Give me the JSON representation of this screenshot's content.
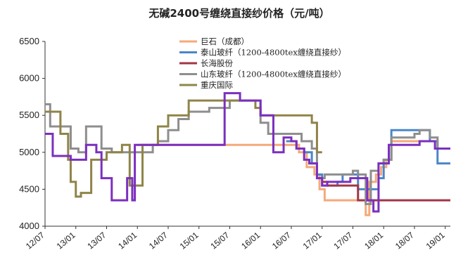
{
  "chart_data": {
    "type": "line",
    "title": "无碱2400号缠绕直接纱价格（元/吨）",
    "xlabel": "",
    "ylabel": "",
    "ylim": [
      4000,
      6500
    ],
    "yticks": [
      4000,
      4500,
      5000,
      5500,
      6000,
      6500
    ],
    "xlim": [
      0,
      79
    ],
    "xticks": [
      {
        "label": "12/07",
        "x": 0
      },
      {
        "label": "13/01",
        "x": 6
      },
      {
        "label": "13/07",
        "x": 12
      },
      {
        "label": "14/01",
        "x": 18
      },
      {
        "label": "14/07",
        "x": 24
      },
      {
        "label": "15/01",
        "x": 30
      },
      {
        "label": "15/07",
        "x": 36
      },
      {
        "label": "16/01",
        "x": 42
      },
      {
        "label": "16/07",
        "x": 48
      },
      {
        "label": "17/01",
        "x": 54
      },
      {
        "label": "17/07",
        "x": 60
      },
      {
        "label": "18/01",
        "x": 66
      },
      {
        "label": "18/07",
        "x": 72
      },
      {
        "label": "19/01",
        "x": 78
      }
    ],
    "legend_position": "top-center",
    "series": [
      {
        "name": "巨石（成都）",
        "color": "#F5A97A",
        "step": true,
        "points": [
          [
            18,
            5100
          ],
          [
            48,
            5100
          ],
          [
            49.5,
            5000
          ],
          [
            51,
            4800
          ],
          [
            52.5,
            4700
          ],
          [
            53.5,
            4500
          ],
          [
            54.5,
            4350
          ],
          [
            62.5,
            4150
          ],
          [
            63.2,
            4600
          ],
          [
            64.5,
            4700
          ],
          [
            65.5,
            4800
          ],
          [
            66.5,
            4900
          ],
          [
            67.5,
            5150
          ],
          [
            74,
            5150
          ],
          [
            76,
            5050
          ],
          [
            79,
            5050
          ]
        ]
      },
      {
        "name": "泰山玻纤（1200-4800tex缠绕直接纱）",
        "color": "#4A86C8",
        "step": true,
        "points": [
          [
            47,
            5150
          ],
          [
            49,
            5050
          ],
          [
            50.5,
            5000
          ],
          [
            52,
            4850
          ],
          [
            53,
            4700
          ],
          [
            54,
            4550
          ],
          [
            57,
            4600
          ],
          [
            58,
            4700
          ],
          [
            61,
            4500
          ],
          [
            65,
            4650
          ],
          [
            66,
            4900
          ],
          [
            67.5,
            5300
          ],
          [
            73,
            5300
          ],
          [
            75,
            5150
          ],
          [
            76.5,
            4850
          ],
          [
            79,
            4850
          ]
        ]
      },
      {
        "name": "长海股份",
        "color": "#A23545",
        "step": true,
        "points": [
          [
            54,
            4600
          ],
          [
            55,
            4550
          ],
          [
            60,
            4550
          ],
          [
            61,
            4350
          ],
          [
            79,
            4350
          ]
        ]
      },
      {
        "name": "山东玻纤（1200-4800tex缠绕直接纱）",
        "color": "#8E8E8E",
        "step": true,
        "points": [
          [
            0,
            5650
          ],
          [
            1,
            5350
          ],
          [
            5,
            5050
          ],
          [
            6.5,
            5000
          ],
          [
            8,
            5350
          ],
          [
            11,
            5050
          ],
          [
            13,
            5000
          ],
          [
            21,
            5100
          ],
          [
            22,
            5150
          ],
          [
            24,
            5300
          ],
          [
            26,
            5450
          ],
          [
            28,
            5550
          ],
          [
            32,
            5600
          ],
          [
            36,
            5700
          ],
          [
            40,
            5700
          ],
          [
            42,
            5400
          ],
          [
            43.5,
            5250
          ],
          [
            47,
            5250
          ],
          [
            50,
            5150
          ],
          [
            52,
            5050
          ],
          [
            53,
            4650
          ],
          [
            54.5,
            4700
          ],
          [
            59,
            4700
          ],
          [
            60,
            4750
          ],
          [
            61,
            4700
          ],
          [
            62.5,
            4300
          ],
          [
            63.5,
            4750
          ],
          [
            65,
            4850
          ],
          [
            66,
            4900
          ],
          [
            67.5,
            5200
          ],
          [
            72,
            5250
          ],
          [
            73,
            5300
          ],
          [
            75,
            5200
          ],
          [
            76.5,
            5050
          ],
          [
            79,
            5050
          ]
        ]
      },
      {
        "name": "重庆国际",
        "color": "#8F8448",
        "step": true,
        "points": [
          [
            0,
            5550
          ],
          [
            3,
            5250
          ],
          [
            4.5,
            4900
          ],
          [
            5,
            4600
          ],
          [
            6,
            4400
          ],
          [
            7,
            4450
          ],
          [
            9,
            4900
          ],
          [
            11,
            4900
          ],
          [
            12,
            5000
          ],
          [
            15,
            5100
          ],
          [
            16.5,
            4550
          ],
          [
            19,
            5100
          ],
          [
            22,
            5350
          ],
          [
            24,
            5500
          ],
          [
            28,
            5700
          ],
          [
            33,
            5700
          ],
          [
            36,
            5700
          ],
          [
            40,
            5700
          ],
          [
            41,
            5600
          ],
          [
            42,
            5500
          ],
          [
            44,
            5500
          ],
          [
            52,
            5400
          ],
          [
            53,
            5000
          ],
          [
            54,
            5000
          ]
        ]
      },
      {
        "name": "",
        "color": "#7B2FBE",
        "step": true,
        "points": [
          [
            0,
            5250
          ],
          [
            1.5,
            4950
          ],
          [
            5,
            4900
          ],
          [
            8,
            5100
          ],
          [
            10,
            5000
          ],
          [
            11,
            4650
          ],
          [
            13,
            4350
          ],
          [
            16,
            4650
          ],
          [
            17,
            4350
          ],
          [
            17.5,
            5100
          ],
          [
            20,
            5100
          ],
          [
            23,
            5100
          ],
          [
            35,
            5800
          ],
          [
            38,
            5700
          ],
          [
            41,
            5700
          ],
          [
            42,
            5500
          ],
          [
            44.5,
            5000
          ],
          [
            46.5,
            5200
          ],
          [
            48,
            5150
          ],
          [
            49,
            5050
          ],
          [
            50.5,
            4900
          ],
          [
            51.5,
            4850
          ],
          [
            52.5,
            4850
          ],
          [
            53,
            4650
          ],
          [
            54,
            4550
          ],
          [
            55,
            4600
          ],
          [
            59.5,
            4650
          ],
          [
            62.8,
            4350
          ],
          [
            64,
            4200
          ],
          [
            65,
            4850
          ],
          [
            66.5,
            4850
          ],
          [
            67,
            5100
          ],
          [
            73,
            5150
          ],
          [
            76,
            5050
          ],
          [
            79,
            5050
          ]
        ]
      }
    ]
  }
}
